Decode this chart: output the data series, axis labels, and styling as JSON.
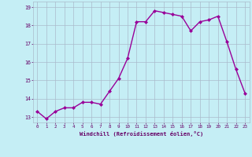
{
  "x": [
    0,
    1,
    2,
    3,
    4,
    5,
    6,
    7,
    8,
    9,
    10,
    11,
    12,
    13,
    14,
    15,
    16,
    17,
    18,
    19,
    20,
    21,
    22,
    23
  ],
  "y": [
    13.3,
    12.9,
    13.3,
    13.5,
    13.5,
    13.8,
    13.8,
    13.7,
    14.4,
    15.1,
    16.2,
    18.2,
    18.2,
    18.8,
    18.7,
    18.6,
    18.5,
    17.7,
    18.2,
    18.3,
    18.5,
    17.1,
    15.6,
    14.3
  ],
  "xlabel": "Windchill (Refroidissement éolien,°C)",
  "ylim": [
    12.7,
    19.3
  ],
  "yticks": [
    13,
    14,
    15,
    16,
    17,
    18,
    19
  ],
  "xticks": [
    0,
    1,
    2,
    3,
    4,
    5,
    6,
    7,
    8,
    9,
    10,
    11,
    12,
    13,
    14,
    15,
    16,
    17,
    18,
    19,
    20,
    21,
    22,
    23
  ],
  "line_color": "#990099",
  "marker_color": "#990099",
  "background_color": "#c5eef5",
  "grid_color": "#aabbcc",
  "xlabel_color": "#660066",
  "tick_color": "#660066",
  "marker": "D",
  "markersize": 2.0,
  "linewidth": 1.0
}
